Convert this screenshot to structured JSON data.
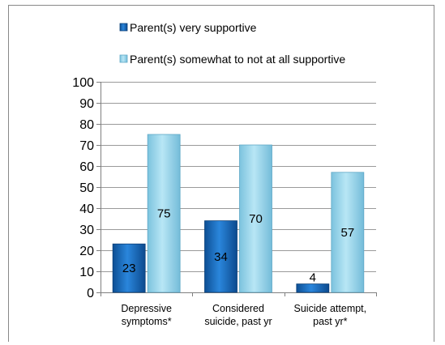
{
  "chart_data": {
    "type": "bar",
    "categories": [
      [
        "Depressive",
        "symptoms*"
      ],
      [
        "Considered",
        "suicide, past yr"
      ],
      [
        "Suicide attempt,",
        "past yr*"
      ]
    ],
    "series": [
      {
        "name": "Parent(s) very supportive",
        "values": [
          23,
          34,
          4
        ],
        "color": "#1a6fc0"
      },
      {
        "name": "Parent(s) somewhat to not at all supportive",
        "values": [
          75,
          70,
          57
        ],
        "color": "#9fd9ec"
      }
    ],
    "ylim": [
      0,
      100
    ],
    "yticks": [
      0,
      10,
      20,
      30,
      40,
      50,
      60,
      70,
      80,
      90,
      100
    ],
    "grid": true,
    "legend_position": "top"
  }
}
